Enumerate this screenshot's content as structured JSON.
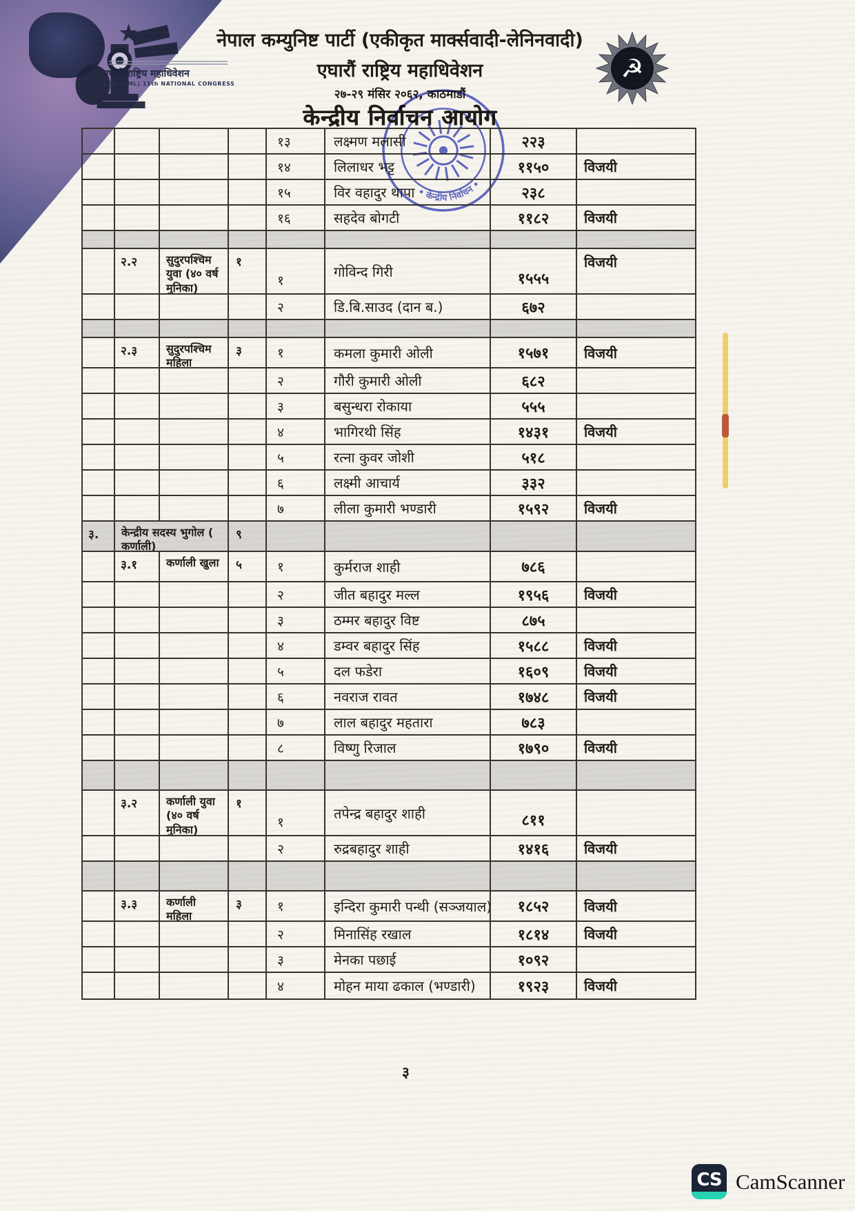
{
  "header": {
    "party_line": "नेपाल कम्युनिष्ट पार्टी (एकीकृत मार्क्सवादी-लेनिनवादी)",
    "congress_line": "एघारौं राष्ट्रिय महाधिवेशन",
    "date_line": "२७-२९ मंसिर २०६२, काठमाडौं",
    "commission_line": "केन्द्रीय निर्वाचन आयोग",
    "emblem_caption_nepali": "एघारौं राष्ट्रिय महाधिवेशन",
    "emblem_caption_english": "CPN (UML) 11th NATIONAL CONGRESS"
  },
  "stamp": {
    "label": "• केन्द्रीय निर्वाचन •"
  },
  "table": {
    "rows": [
      {
        "kind": "normal",
        "serial": "१३",
        "name": "लक्ष्मण मलासी",
        "votes": "२२३",
        "result": ""
      },
      {
        "kind": "normal",
        "serial": "१४",
        "name": "लिलाधर भट्ट",
        "votes": "११५०",
        "result": "विजयी"
      },
      {
        "kind": "normal",
        "serial": "१५",
        "name": "विर वहादुर थापा",
        "votes": "२३८",
        "result": ""
      },
      {
        "kind": "normal",
        "serial": "१६",
        "name": "सहदेव बोगटी",
        "votes": "११८२",
        "result": "विजयी"
      },
      {
        "kind": "spacer-sm"
      },
      {
        "kind": "group-tall",
        "sub": "२.२",
        "category": "सुदुरपश्चिम युवा (४० वर्ष मुनिका)",
        "seats": "१",
        "serial": "१",
        "name": "गोविन्द गिरी",
        "votes": "१५५५",
        "result": "विजयी"
      },
      {
        "kind": "normal",
        "serial": "२",
        "name": "डि.बि.साउद (दान ब.)",
        "votes": "६७२",
        "result": ""
      },
      {
        "kind": "spacer-sm"
      },
      {
        "kind": "group",
        "sub": "२.३",
        "category": "सुदुरपश्चिम महिला",
        "seats": "३",
        "serial": "१",
        "name": "कमला कुमारी ओली",
        "votes": "१५७१",
        "result": "विजयी"
      },
      {
        "kind": "normal",
        "serial": "२",
        "name": "गौरी कुमारी ओली",
        "votes": "६८२",
        "result": ""
      },
      {
        "kind": "normal",
        "serial": "३",
        "name": "बसुन्धरा रोकाया",
        "votes": "५५५",
        "result": ""
      },
      {
        "kind": "normal",
        "serial": "४",
        "name": "भागिरथी सिंह",
        "votes": "१४३१",
        "result": "विजयी"
      },
      {
        "kind": "normal",
        "serial": "५",
        "name": "रत्ना कुवर जोशी",
        "votes": "५१८",
        "result": ""
      },
      {
        "kind": "normal",
        "serial": "६",
        "name": "लक्ष्मी आचार्य",
        "votes": "३३२",
        "result": ""
      },
      {
        "kind": "normal",
        "serial": "७",
        "name": "लीला कुमारी भण्डारी",
        "votes": "१५९२",
        "result": "विजयी"
      },
      {
        "kind": "section",
        "sec": "३.",
        "category": "केन्द्रीय सदस्य भुगोल ( कर्णाली)",
        "seats": "९"
      },
      {
        "kind": "group",
        "sub": "३.१",
        "category": "कर्णाली खुला",
        "seats": "५",
        "serial": "१",
        "name": "कुर्मराज शाही",
        "votes": "७८६",
        "result": ""
      },
      {
        "kind": "normal",
        "serial": "२",
        "name": "जीत बहादुर मल्ल",
        "votes": "१९५६",
        "result": "विजयी"
      },
      {
        "kind": "normal",
        "serial": "३",
        "name": "ठम्मर बहादुर विष्ट",
        "votes": "८७५",
        "result": ""
      },
      {
        "kind": "normal",
        "serial": "४",
        "name": "डम्वर बहादुर सिंह",
        "votes": "१५८८",
        "result": "विजयी"
      },
      {
        "kind": "normal",
        "serial": "५",
        "name": "दल फडेरा",
        "votes": "१६०९",
        "result": "विजयी"
      },
      {
        "kind": "normal",
        "serial": "६",
        "name": "नवराज रावत",
        "votes": "१७४८",
        "result": "विजयी"
      },
      {
        "kind": "normal",
        "serial": "७",
        "name": "लाल बहादुर महतारा",
        "votes": "७८३",
        "result": ""
      },
      {
        "kind": "normal",
        "serial": "८",
        "name": "विष्णु रिजाल",
        "votes": "१७९०",
        "result": "विजयी"
      },
      {
        "kind": "spacer-lg"
      },
      {
        "kind": "group-tall",
        "sub": "३.२",
        "category": "कर्णाली युवा (४० वर्ष मुनिका)",
        "seats": "१",
        "serial": "१",
        "name": "तपेन्द्र बहादुर शाही",
        "votes": "८११",
        "result": ""
      },
      {
        "kind": "normal",
        "serial": "२",
        "name": "रुद्रबहादुर शाही",
        "votes": "१४१६",
        "result": "विजयी"
      },
      {
        "kind": "spacer-lg"
      },
      {
        "kind": "group",
        "sub": "३.३",
        "category": "कर्णाली महिला",
        "seats": "३",
        "serial": "१",
        "name": "इन्दिरा कुमारी पन्थी (सञ्जयाल)",
        "votes": "१८५२",
        "result": "विजयी"
      },
      {
        "kind": "normal",
        "serial": "२",
        "name": "मिनासिंह रखाल",
        "votes": "१८१४",
        "result": "विजयी"
      },
      {
        "kind": "normal",
        "serial": "३",
        "name": "मेनका पछाई",
        "votes": "१०९२",
        "result": ""
      },
      {
        "kind": "normal",
        "serial": "४",
        "name": "मोहन माया ढकाल (भण्डारी)",
        "votes": "१९२३",
        "result": "विजयी"
      }
    ]
  },
  "footer": {
    "page_number": "३"
  },
  "watermark": {
    "icon_text": "CS",
    "label": "CamScanner"
  },
  "colors": {
    "stamp_blue": "#3a47c1",
    "highlight_yellow": "#e9c53e",
    "mark_red": "#b23b2a",
    "cs_navy": "#1b2336",
    "cs_teal": "#27d3b2"
  }
}
